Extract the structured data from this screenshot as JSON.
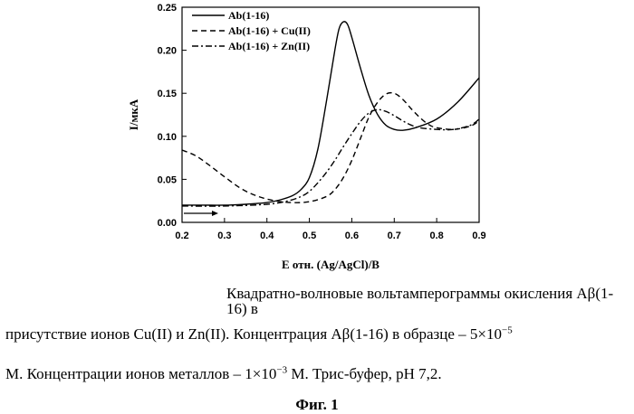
{
  "chart_data": {
    "type": "line",
    "title": "",
    "xlabel": "E отн. (Ag/AgCl)/B",
    "ylabel": "I/мкА",
    "xlim": [
      0.2,
      0.9
    ],
    "ylim": [
      0.0,
      0.25
    ],
    "x_ticks": [
      "0.2",
      "0.3",
      "0.4",
      "0.5",
      "0.6",
      "0.7",
      "0.8",
      "0.9"
    ],
    "y_ticks": [
      "0.00",
      "0.05",
      "0.10",
      "0.15",
      "0.20",
      "0.25"
    ],
    "legend_position": "top-left",
    "scan_direction_arrow": "right",
    "series": [
      {
        "name": "Ab(1-16)",
        "style": "solid",
        "color": "#000000",
        "x": [
          0.2,
          0.25,
          0.3,
          0.35,
          0.4,
          0.43,
          0.46,
          0.48,
          0.5,
          0.52,
          0.54,
          0.56,
          0.57,
          0.58,
          0.59,
          0.6,
          0.62,
          0.64,
          0.66,
          0.68,
          0.7,
          0.72,
          0.75,
          0.8,
          0.85,
          0.9
        ],
        "y": [
          0.02,
          0.02,
          0.02,
          0.021,
          0.023,
          0.026,
          0.031,
          0.038,
          0.052,
          0.085,
          0.14,
          0.2,
          0.225,
          0.233,
          0.23,
          0.215,
          0.18,
          0.148,
          0.126,
          0.113,
          0.108,
          0.107,
          0.11,
          0.12,
          0.14,
          0.168
        ]
      },
      {
        "name": "Ab(1-16) + Cu(II)",
        "style": "dashed",
        "color": "#000000",
        "x": [
          0.2,
          0.23,
          0.26,
          0.3,
          0.34,
          0.38,
          0.42,
          0.46,
          0.5,
          0.54,
          0.56,
          0.58,
          0.6,
          0.62,
          0.64,
          0.66,
          0.68,
          0.7,
          0.72,
          0.74,
          0.76,
          0.78,
          0.8,
          0.84,
          0.88,
          0.9
        ],
        "y": [
          0.084,
          0.078,
          0.068,
          0.053,
          0.039,
          0.03,
          0.025,
          0.023,
          0.024,
          0.03,
          0.038,
          0.052,
          0.072,
          0.097,
          0.122,
          0.139,
          0.149,
          0.15,
          0.143,
          0.132,
          0.122,
          0.114,
          0.11,
          0.108,
          0.112,
          0.118
        ]
      },
      {
        "name": "Ab(1-16) + Zn(II)",
        "style": "dash-dot",
        "color": "#000000",
        "x": [
          0.2,
          0.3,
          0.4,
          0.45,
          0.48,
          0.5,
          0.52,
          0.54,
          0.56,
          0.58,
          0.6,
          0.62,
          0.64,
          0.66,
          0.68,
          0.7,
          0.72,
          0.74,
          0.76,
          0.8,
          0.84,
          0.88,
          0.9
        ],
        "y": [
          0.019,
          0.019,
          0.021,
          0.025,
          0.03,
          0.036,
          0.046,
          0.058,
          0.072,
          0.088,
          0.103,
          0.117,
          0.127,
          0.131,
          0.129,
          0.124,
          0.118,
          0.113,
          0.11,
          0.108,
          0.108,
          0.113,
          0.12
        ]
      }
    ]
  },
  "caption": {
    "line1": "Квадратно-волновые вольтамперограммы окисления Aβ(1-16) в",
    "line2_text": "присутствие ионов Cu(II) и Zn(II). Концентрация Aβ(1-16) в образце – 5×10",
    "line2_exp": "−5",
    "line3_pre": "М. Концентрации ионов металлов – 1×10",
    "line3_exp": "−3",
    "line3_post": " М. Трис-буфер, рН 7,2."
  },
  "figure_label": "Фиг.   1"
}
